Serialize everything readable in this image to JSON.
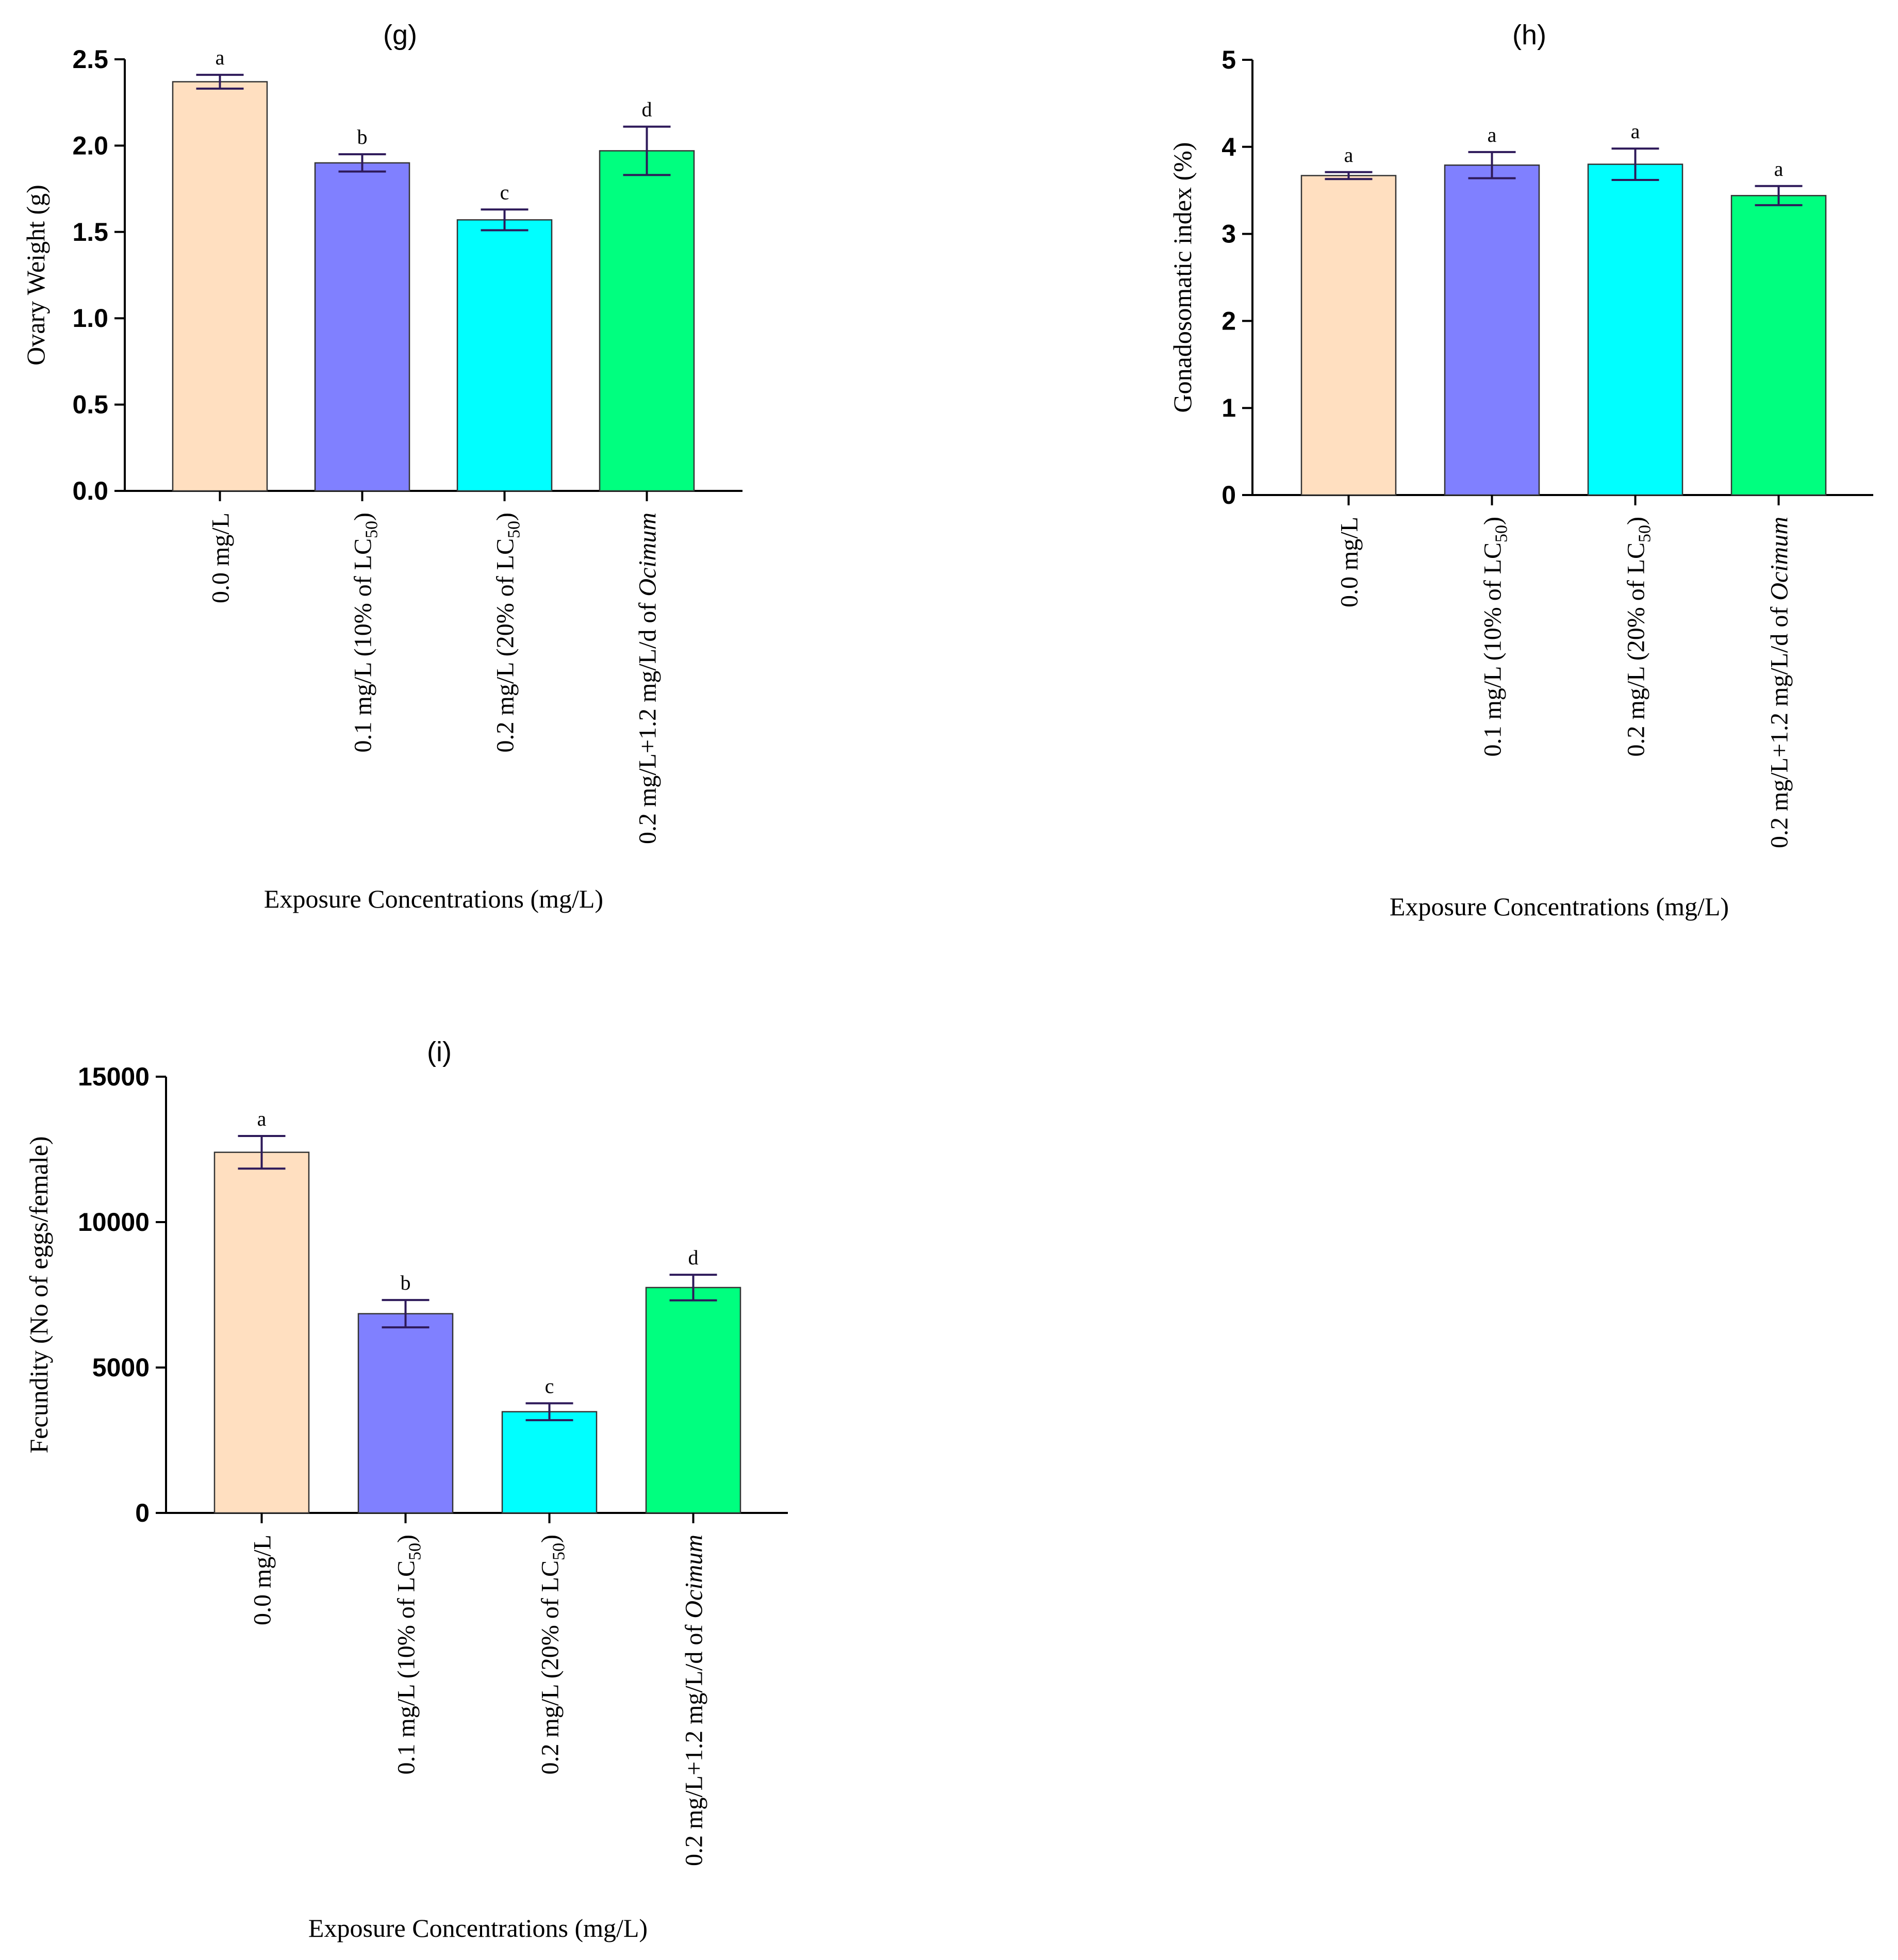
{
  "chart_data": [
    {
      "type": "bar",
      "title": "(g)",
      "xlabel": "Exposure Concentrations (mg/L)",
      "ylabel": "Ovary Weight (g)",
      "ylim": [
        0,
        2.5
      ],
      "yticks": [
        "0.0",
        "0.5",
        "1.0",
        "1.5",
        "2.0",
        "2.5"
      ],
      "categories": [
        {
          "pre": "0.0 mg/L",
          "sub": "",
          "post": "",
          "italic": ""
        },
        {
          "pre": "0.1 mg/L (10% of LC",
          "sub": "50",
          "post": ")",
          "italic": ""
        },
        {
          "pre": "0.2 mg/L (20% of LC",
          "sub": "50",
          "post": ")",
          "italic": ""
        },
        {
          "pre": "0.2 mg/L+1.2 mg/L/d of ",
          "sub": "",
          "post": "",
          "italic": "Ocimum"
        }
      ],
      "values": [
        2.37,
        1.9,
        1.57,
        1.97
      ],
      "errors": [
        0.04,
        0.05,
        0.06,
        0.14
      ],
      "significance": [
        "a",
        "b",
        "c",
        "d"
      ],
      "colors": [
        "#ffdfc0",
        "#8080ff",
        "#00ffff",
        "#00ff7f"
      ]
    },
    {
      "type": "bar",
      "title": "(h)",
      "xlabel": "Exposure Concentrations (mg/L)",
      "ylabel": "Gonadosomatic index  (%)",
      "ylim": [
        0,
        5
      ],
      "yticks": [
        "0",
        "1",
        "2",
        "3",
        "4",
        "5"
      ],
      "categories": [
        {
          "pre": "0.0 mg/L",
          "sub": "",
          "post": "",
          "italic": ""
        },
        {
          "pre": "0.1 mg/L (10% of LC",
          "sub": "50",
          "post": ")",
          "italic": ""
        },
        {
          "pre": "0.2 mg/L (20% of LC",
          "sub": "50",
          "post": ")",
          "italic": ""
        },
        {
          "pre": "0.2 mg/L+1.2 mg/L/d of ",
          "sub": "",
          "post": "",
          "italic": "Ocimum"
        }
      ],
      "values": [
        3.67,
        3.79,
        3.8,
        3.44
      ],
      "errors": [
        0.04,
        0.15,
        0.18,
        0.11
      ],
      "significance": [
        "a",
        "a",
        "a",
        "a"
      ],
      "colors": [
        "#ffdfc0",
        "#8080ff",
        "#00ffff",
        "#00ff7f"
      ]
    },
    {
      "type": "bar",
      "title": "(i)",
      "xlabel": "Exposure Concentrations (mg/L)",
      "ylabel": "Fecundity (No of eggs/female)",
      "ylim": [
        0,
        15000
      ],
      "yticks": [
        "0",
        "5000",
        "10000",
        "15000"
      ],
      "categories": [
        {
          "pre": "0.0 mg/L",
          "sub": "",
          "post": "",
          "italic": ""
        },
        {
          "pre": "0.1 mg/L (10% of LC",
          "sub": "50",
          "post": ")",
          "italic": ""
        },
        {
          "pre": "0.2 mg/L (20% of LC",
          "sub": "50",
          "post": ")",
          "italic": ""
        },
        {
          "pre": "0.2 mg/L+1.2 mg/L/d of ",
          "sub": "",
          "post": "",
          "italic": "Ocimum"
        }
      ],
      "values": [
        12400,
        6850,
        3480,
        7750
      ],
      "errors": [
        560,
        470,
        290,
        440
      ],
      "significance": [
        "a",
        "b",
        "c",
        "d"
      ],
      "colors": [
        "#ffdfc0",
        "#8080ff",
        "#00ffff",
        "#00ff7f"
      ]
    }
  ]
}
